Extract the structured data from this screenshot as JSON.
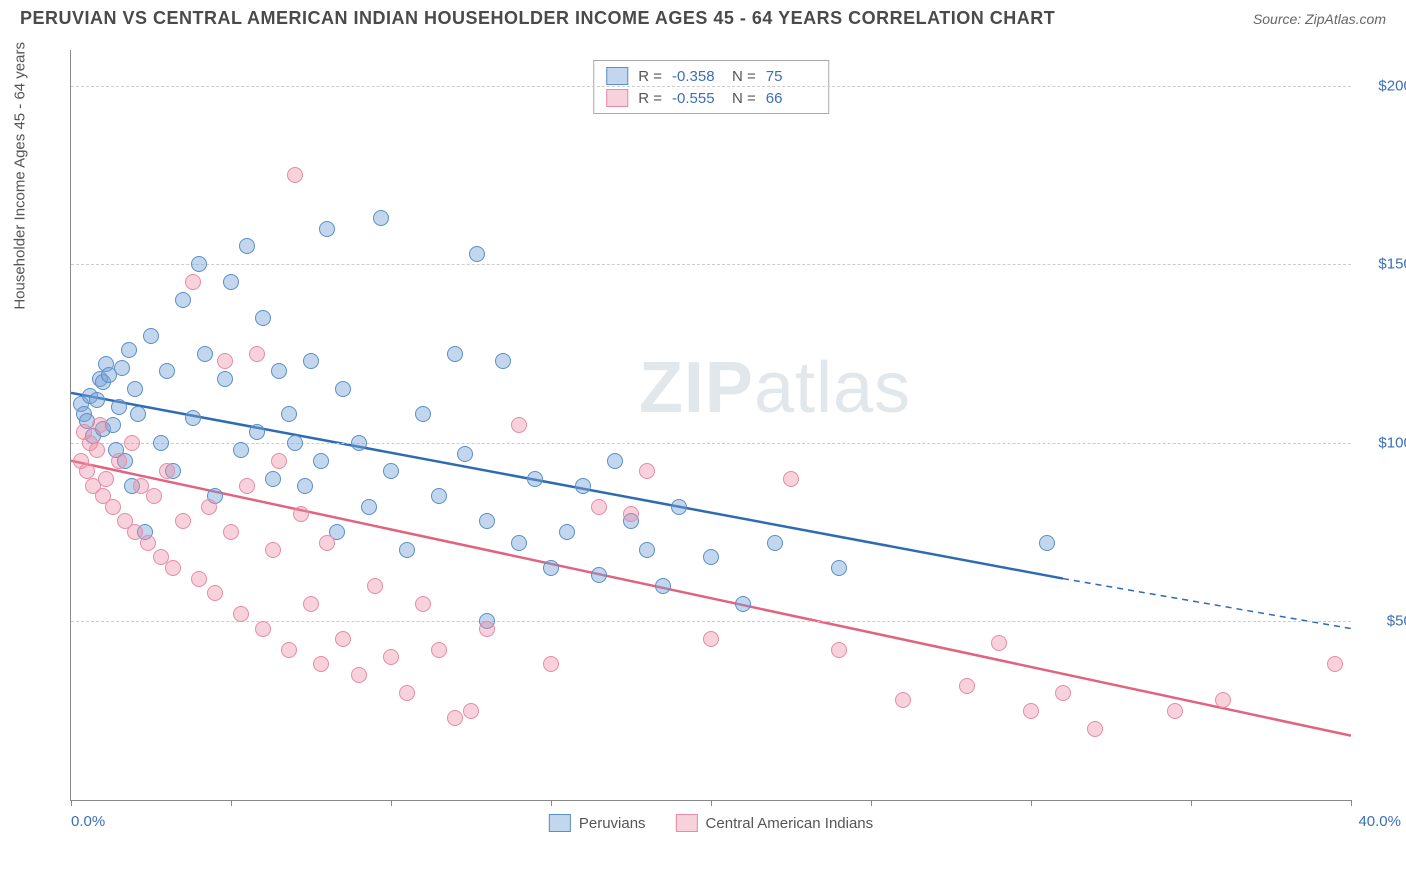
{
  "title": "PERUVIAN VS CENTRAL AMERICAN INDIAN HOUSEHOLDER INCOME AGES 45 - 64 YEARS CORRELATION CHART",
  "source": "Source: ZipAtlas.com",
  "ylabel": "Householder Income Ages 45 - 64 years",
  "watermark_a": "ZIP",
  "watermark_b": "atlas",
  "chart": {
    "type": "scatter",
    "xlim": [
      0,
      40
    ],
    "ylim": [
      0,
      210000
    ],
    "x_tick_label_min": "0.0%",
    "x_tick_label_max": "40.0%",
    "x_ticks": [
      0,
      5,
      10,
      15,
      20,
      25,
      30,
      35,
      40
    ],
    "y_gridlines": [
      50000,
      100000,
      150000,
      200000
    ],
    "y_tick_labels": [
      "$50,000",
      "$100,000",
      "$150,000",
      "$200,000"
    ],
    "background_color": "#ffffff",
    "grid_color": "#cccccc",
    "axis_color": "#888888",
    "tick_label_color": "#3b6fb5",
    "series": [
      {
        "name": "Peruvians",
        "legend_label": "Peruvians",
        "R": "-0.358",
        "N": "75",
        "marker_fill": "rgba(120,165,216,0.45)",
        "marker_stroke": "#5a8fc9",
        "line_color": "#2e6bb3",
        "line_width": 2.5,
        "trend": {
          "x1": 0,
          "y1": 114000,
          "x2": 31,
          "y2": 62000,
          "dash_x2": 40,
          "dash_y2": 48000
        },
        "points": [
          [
            0.3,
            111000
          ],
          [
            0.4,
            108000
          ],
          [
            0.5,
            106000
          ],
          [
            0.6,
            113000
          ],
          [
            0.7,
            102000
          ],
          [
            0.8,
            112000
          ],
          [
            0.9,
            118000
          ],
          [
            1.0,
            104000
          ],
          [
            1.0,
            117000
          ],
          [
            1.1,
            122000
          ],
          [
            1.2,
            119000
          ],
          [
            1.3,
            105000
          ],
          [
            1.4,
            98000
          ],
          [
            1.5,
            110000
          ],
          [
            1.6,
            121000
          ],
          [
            1.7,
            95000
          ],
          [
            1.8,
            126000
          ],
          [
            1.9,
            88000
          ],
          [
            2.0,
            115000
          ],
          [
            2.1,
            108000
          ],
          [
            2.3,
            75000
          ],
          [
            2.5,
            130000
          ],
          [
            2.8,
            100000
          ],
          [
            3.0,
            120000
          ],
          [
            3.2,
            92000
          ],
          [
            3.5,
            140000
          ],
          [
            3.8,
            107000
          ],
          [
            4.0,
            150000
          ],
          [
            4.2,
            125000
          ],
          [
            4.5,
            85000
          ],
          [
            4.8,
            118000
          ],
          [
            5.0,
            145000
          ],
          [
            5.3,
            98000
          ],
          [
            5.5,
            155000
          ],
          [
            5.8,
            103000
          ],
          [
            6.0,
            135000
          ],
          [
            6.3,
            90000
          ],
          [
            6.5,
            120000
          ],
          [
            6.8,
            108000
          ],
          [
            7.0,
            100000
          ],
          [
            7.3,
            88000
          ],
          [
            7.5,
            123000
          ],
          [
            7.8,
            95000
          ],
          [
            8.0,
            160000
          ],
          [
            8.3,
            75000
          ],
          [
            8.5,
            115000
          ],
          [
            9.0,
            100000
          ],
          [
            9.3,
            82000
          ],
          [
            9.7,
            163000
          ],
          [
            10.0,
            92000
          ],
          [
            10.5,
            70000
          ],
          [
            11.0,
            108000
          ],
          [
            11.5,
            85000
          ],
          [
            12.0,
            125000
          ],
          [
            12.3,
            97000
          ],
          [
            12.7,
            153000
          ],
          [
            13.0,
            78000
          ],
          [
            13.5,
            123000
          ],
          [
            14.0,
            72000
          ],
          [
            14.5,
            90000
          ],
          [
            15.0,
            65000
          ],
          [
            15.5,
            75000
          ],
          [
            16.0,
            88000
          ],
          [
            16.5,
            63000
          ],
          [
            17.0,
            95000
          ],
          [
            17.5,
            78000
          ],
          [
            18.0,
            70000
          ],
          [
            18.5,
            60000
          ],
          [
            19.0,
            82000
          ],
          [
            13.0,
            50000
          ],
          [
            20.0,
            68000
          ],
          [
            21.0,
            55000
          ],
          [
            22.0,
            72000
          ],
          [
            24.0,
            65000
          ],
          [
            30.5,
            72000
          ]
        ]
      },
      {
        "name": "Central American Indians",
        "legend_label": "Central American Indians",
        "R": "-0.555",
        "N": "66",
        "marker_fill": "rgba(235,140,165,0.40)",
        "marker_stroke": "#e88ba5",
        "line_color": "#e0637f",
        "line_width": 2.5,
        "trend": {
          "x1": 0,
          "y1": 95000,
          "x2": 40,
          "y2": 18000
        },
        "points": [
          [
            0.3,
            95000
          ],
          [
            0.4,
            103000
          ],
          [
            0.5,
            92000
          ],
          [
            0.6,
            100000
          ],
          [
            0.7,
            88000
          ],
          [
            0.8,
            98000
          ],
          [
            0.9,
            105000
          ],
          [
            1.0,
            85000
          ],
          [
            1.1,
            90000
          ],
          [
            1.3,
            82000
          ],
          [
            1.5,
            95000
          ],
          [
            1.7,
            78000
          ],
          [
            1.9,
            100000
          ],
          [
            2.0,
            75000
          ],
          [
            2.2,
            88000
          ],
          [
            2.4,
            72000
          ],
          [
            2.6,
            85000
          ],
          [
            2.8,
            68000
          ],
          [
            3.0,
            92000
          ],
          [
            3.2,
            65000
          ],
          [
            3.5,
            78000
          ],
          [
            3.8,
            145000
          ],
          [
            4.0,
            62000
          ],
          [
            4.3,
            82000
          ],
          [
            4.5,
            58000
          ],
          [
            4.8,
            123000
          ],
          [
            5.0,
            75000
          ],
          [
            5.3,
            52000
          ],
          [
            5.5,
            88000
          ],
          [
            5.8,
            125000
          ],
          [
            6.0,
            48000
          ],
          [
            6.3,
            70000
          ],
          [
            6.5,
            95000
          ],
          [
            6.8,
            42000
          ],
          [
            7.0,
            175000
          ],
          [
            7.2,
            80000
          ],
          [
            7.5,
            55000
          ],
          [
            7.8,
            38000
          ],
          [
            8.0,
            72000
          ],
          [
            8.5,
            45000
          ],
          [
            9.0,
            35000
          ],
          [
            9.5,
            60000
          ],
          [
            10.0,
            40000
          ],
          [
            10.5,
            30000
          ],
          [
            11.0,
            55000
          ],
          [
            11.5,
            42000
          ],
          [
            12.0,
            23000
          ],
          [
            12.5,
            25000
          ],
          [
            13.0,
            48000
          ],
          [
            14.0,
            105000
          ],
          [
            15.0,
            38000
          ],
          [
            16.5,
            82000
          ],
          [
            17.5,
            80000
          ],
          [
            18.0,
            92000
          ],
          [
            20.0,
            45000
          ],
          [
            22.5,
            90000
          ],
          [
            24.0,
            42000
          ],
          [
            26.0,
            28000
          ],
          [
            28.0,
            32000
          ],
          [
            29.0,
            44000
          ],
          [
            30.0,
            25000
          ],
          [
            31.0,
            30000
          ],
          [
            32.0,
            20000
          ],
          [
            34.5,
            25000
          ],
          [
            36.0,
            28000
          ],
          [
            39.5,
            38000
          ]
        ]
      }
    ]
  },
  "stats_labels": {
    "R": "R =",
    "N": "N ="
  }
}
